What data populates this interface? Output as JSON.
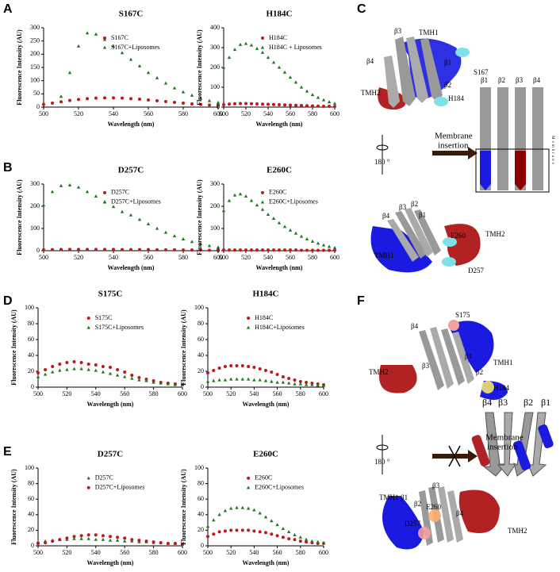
{
  "panels": [
    "A",
    "B",
    "C",
    "D",
    "E",
    "F"
  ],
  "diagrams": {
    "C": [
      "β3",
      "TMH1",
      "β4",
      "β1",
      "S167",
      "TMH2",
      "β2",
      "H184",
      "180 °",
      "Membrane",
      "insertion",
      "β1",
      "β2",
      "β3",
      "β4",
      "Membrane",
      "β3",
      "β2",
      "β4",
      "β1",
      "E260",
      "TMH2",
      "TMH1",
      "D257"
    ],
    "F": [
      "S175",
      "β4",
      "TMH1",
      "TMH2",
      "β3",
      "β1",
      "β2",
      "H184",
      "180 °",
      "Membrane",
      "insertion",
      "β4",
      "β3",
      "β2",
      "β1",
      "β3",
      "TMH1",
      "β1",
      "β2",
      "E260",
      "β4",
      "D257",
      "TMH2"
    ]
  },
  "chart_data": [
    {
      "type": "scatter",
      "title": "S167C",
      "xlabel": "Wavelength (nm)",
      "ylabel": "Fluorescence Intensity (AU)",
      "x": [
        500,
        505,
        510,
        515,
        520,
        525,
        530,
        535,
        540,
        545,
        550,
        555,
        560,
        565,
        570,
        575,
        580,
        585,
        590,
        595,
        600
      ],
      "xlim": [
        500,
        600
      ],
      "xticks": [
        500,
        520,
        540,
        560,
        580,
        600
      ],
      "ylim": [
        0,
        300
      ],
      "yticks": [
        0,
        50,
        100,
        150,
        200,
        250,
        300
      ],
      "legend": "upper right",
      "series": [
        {
          "name": "S167C",
          "color": "#c0181a",
          "marker": "circle",
          "values": [
            10,
            15,
            20,
            25,
            29,
            32,
            34,
            35,
            35,
            34,
            32,
            30,
            27,
            24,
            21,
            18,
            15,
            12,
            10,
            8,
            7
          ]
        },
        {
          "name": "S167C+Liposomes",
          "color": "#1f7a1f",
          "marker": "triangle",
          "values": [
            null,
            null,
            40,
            130,
            230,
            280,
            275,
            255,
            230,
            205,
            180,
            155,
            130,
            110,
            90,
            72,
            57,
            44,
            33,
            24,
            17
          ]
        }
      ]
    },
    {
      "type": "scatter",
      "title": "H184C",
      "xlabel": "Wavelength (nm)",
      "ylabel": "Fluorescence Intensity (AU)",
      "x": [
        500,
        505,
        510,
        515,
        520,
        525,
        530,
        535,
        540,
        545,
        550,
        555,
        560,
        565,
        570,
        575,
        580,
        585,
        590,
        595,
        600
      ],
      "xlim": [
        500,
        600
      ],
      "xticks": [
        500,
        520,
        540,
        560,
        580,
        600
      ],
      "ylim": [
        0,
        400
      ],
      "yticks": [
        0,
        100,
        200,
        300,
        400
      ],
      "legend": "upper right",
      "series": [
        {
          "name": "H184C",
          "color": "#c0181a",
          "marker": "circle",
          "values": [
            12,
            15,
            17,
            18,
            18,
            17,
            16,
            15,
            14,
            13,
            12,
            11,
            10,
            9,
            8,
            7,
            6,
            5,
            4,
            4,
            3
          ]
        },
        {
          "name": "H184C + Liposomes",
          "color": "#1f7a1f",
          "marker": "triangle",
          "values": [
            200,
            250,
            290,
            315,
            320,
            312,
            295,
            275,
            250,
            225,
            200,
            175,
            150,
            125,
            100,
            80,
            62,
            48,
            36,
            26,
            18
          ]
        }
      ]
    },
    {
      "type": "scatter",
      "title": "D257C",
      "xlabel": "Wavelength (nm)",
      "ylabel": "Fluorescence Intensity (AU)",
      "x": [
        500,
        505,
        510,
        515,
        520,
        525,
        530,
        535,
        540,
        545,
        550,
        555,
        560,
        565,
        570,
        575,
        580,
        585,
        590,
        595,
        600
      ],
      "xlim": [
        500,
        600
      ],
      "xticks": [
        500,
        520,
        540,
        560,
        580,
        600
      ],
      "ylim": [
        0,
        300
      ],
      "yticks": [
        0,
        100,
        200,
        300
      ],
      "legend": "upper right",
      "series": [
        {
          "name": "D257C",
          "color": "#c0181a",
          "marker": "circle",
          "values": [
            4,
            5,
            6,
            6,
            6,
            6,
            6,
            6,
            6,
            5,
            5,
            5,
            5,
            4,
            4,
            4,
            3,
            3,
            3,
            2,
            2
          ]
        },
        {
          "name": "D257C+Liposomes",
          "color": "#1f7a1f",
          "marker": "triangle",
          "values": [
            205,
            265,
            292,
            295,
            285,
            265,
            245,
            220,
            198,
            175,
            160,
            140,
            120,
            100,
            82,
            66,
            52,
            40,
            30,
            22,
            15
          ]
        }
      ]
    },
    {
      "type": "scatter",
      "title": "E260C",
      "xlabel": "Wavelength (nm)",
      "ylabel": "Fluorescence Intensity (AU)",
      "x": [
        500,
        505,
        510,
        515,
        520,
        525,
        530,
        535,
        540,
        545,
        550,
        555,
        560,
        565,
        570,
        575,
        580,
        585,
        590,
        595,
        600
      ],
      "xlim": [
        500,
        600
      ],
      "xticks": [
        500,
        520,
        540,
        560,
        580,
        600
      ],
      "ylim": [
        0,
        300
      ],
      "yticks": [
        0,
        100,
        200,
        300
      ],
      "legend": "upper right",
      "series": [
        {
          "name": "E260C",
          "color": "#c0181a",
          "marker": "circle",
          "values": [
            3,
            3,
            3,
            3,
            3,
            3,
            3,
            3,
            3,
            3,
            3,
            3,
            3,
            3,
            2,
            2,
            2,
            2,
            2,
            2,
            2
          ]
        },
        {
          "name": "E260C+Liposomes",
          "color": "#1f7a1f",
          "marker": "triangle",
          "values": [
            180,
            225,
            250,
            255,
            245,
            225,
            205,
            185,
            163,
            145,
            125,
            108,
            92,
            78,
            64,
            52,
            42,
            33,
            25,
            18,
            13
          ]
        }
      ]
    },
    {
      "type": "scatter",
      "title": "S175C",
      "xlabel": "Wavelength (nm)",
      "ylabel": "Fluorescence Intensity (AU)",
      "x": [
        500,
        505,
        510,
        515,
        520,
        525,
        530,
        535,
        540,
        545,
        550,
        555,
        560,
        565,
        570,
        575,
        580,
        585,
        590,
        595,
        600
      ],
      "xlim": [
        500,
        600
      ],
      "xticks": [
        500,
        520,
        540,
        560,
        580,
        600
      ],
      "ylim": [
        0,
        100
      ],
      "yticks": [
        0,
        20,
        40,
        60,
        80,
        100
      ],
      "legend": "upper right",
      "series": [
        {
          "name": "S175C",
          "color": "#c0181a",
          "marker": "circle",
          "values": [
            18,
            22,
            26,
            29,
            31,
            32,
            31,
            29,
            28,
            26,
            25,
            22,
            19,
            15,
            12,
            10,
            8,
            6,
            5,
            4,
            3
          ]
        },
        {
          "name": "S175C+Liposomes",
          "color": "#1f7a1f",
          "marker": "triangle",
          "values": [
            13,
            16,
            19,
            21,
            22,
            23,
            23,
            22,
            21,
            19,
            17,
            15,
            13,
            11,
            9,
            8,
            6,
            5,
            4,
            3,
            3
          ]
        }
      ]
    },
    {
      "type": "scatter",
      "title": "H184C",
      "xlabel": "Wavelength (nm)",
      "ylabel": "Fluorescence Intensity (AU)",
      "x": [
        500,
        505,
        510,
        515,
        520,
        525,
        530,
        535,
        540,
        545,
        550,
        555,
        560,
        565,
        570,
        575,
        580,
        585,
        590,
        595,
        600
      ],
      "xlim": [
        500,
        600
      ],
      "xticks": [
        500,
        520,
        540,
        560,
        580,
        600
      ],
      "ylim": [
        0,
        100
      ],
      "yticks": [
        0,
        20,
        40,
        60,
        80,
        100
      ],
      "legend": "upper right",
      "series": [
        {
          "name": "H184C",
          "color": "#c0181a",
          "marker": "circle",
          "values": [
            18,
            21,
            24,
            26,
            27,
            27,
            27,
            26,
            25,
            23,
            21,
            19,
            16,
            13,
            11,
            9,
            7,
            6,
            5,
            4,
            3
          ]
        },
        {
          "name": "H184C+Liposomes",
          "color": "#1f7a1f",
          "marker": "triangle",
          "values": [
            7,
            8,
            9,
            9,
            10,
            10,
            10,
            10,
            9,
            9,
            8,
            7,
            6,
            6,
            5,
            4,
            4,
            3,
            3,
            2,
            2
          ]
        }
      ]
    },
    {
      "type": "scatter",
      "title": "D257C",
      "xlabel": "Wavelength (nm)",
      "ylabel": "Fluorescence Intensity (AU)",
      "x": [
        500,
        505,
        510,
        515,
        520,
        525,
        530,
        535,
        540,
        545,
        550,
        555,
        560,
        565,
        570,
        575,
        580,
        585,
        590,
        595,
        600
      ],
      "xlim": [
        500,
        600
      ],
      "xticks": [
        500,
        520,
        540,
        560,
        580,
        600
      ],
      "ylim": [
        0,
        100
      ],
      "yticks": [
        0,
        20,
        40,
        60,
        80,
        100
      ],
      "legend": "upper right",
      "series": [
        {
          "name": "D257C",
          "color": "#1f7a1f",
          "marker": "triangle",
          "values": [
            5,
            6,
            7,
            8,
            8,
            9,
            9,
            9,
            8,
            8,
            7,
            7,
            6,
            6,
            5,
            5,
            4,
            4,
            3,
            3,
            2
          ]
        },
        {
          "name": "D257C+Liposomes",
          "color": "#c0181a",
          "marker": "circle",
          "values": [
            3,
            4,
            6,
            8,
            10,
            12,
            13,
            14,
            14,
            13,
            12,
            11,
            10,
            8,
            7,
            6,
            5,
            4,
            3,
            3,
            2
          ]
        }
      ]
    },
    {
      "type": "scatter",
      "title": "E260C",
      "xlabel": "Wavelength (nm)",
      "ylabel": "Fluorescence Intensity (AU)",
      "x": [
        500,
        505,
        510,
        515,
        520,
        525,
        530,
        535,
        540,
        545,
        550,
        555,
        560,
        565,
        570,
        575,
        580,
        585,
        590,
        595,
        600
      ],
      "xlim": [
        500,
        600
      ],
      "xticks": [
        500,
        520,
        540,
        560,
        580,
        600
      ],
      "ylim": [
        0,
        100
      ],
      "yticks": [
        0,
        20,
        40,
        60,
        80,
        100
      ],
      "legend": "upper right",
      "series": [
        {
          "name": "E260C",
          "color": "#c0181a",
          "marker": "circle",
          "values": [
            12,
            15,
            18,
            19,
            20,
            20,
            20,
            20,
            19,
            18,
            17,
            15,
            13,
            11,
            9,
            8,
            6,
            5,
            4,
            3,
            3
          ]
        },
        {
          "name": "E260C+Liposomes",
          "color": "#1f7a1f",
          "marker": "triangle",
          "values": [
            25,
            33,
            40,
            45,
            48,
            49,
            49,
            48,
            46,
            42,
            37,
            32,
            27,
            22,
            18,
            14,
            11,
            8,
            6,
            5,
            4
          ]
        }
      ]
    }
  ]
}
